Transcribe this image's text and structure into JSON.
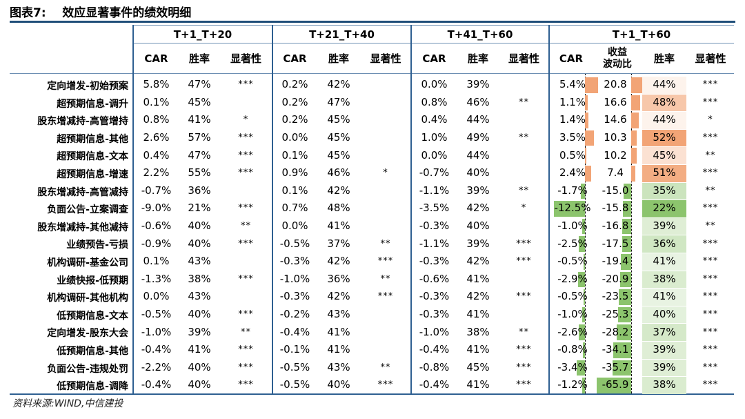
{
  "title": "图表7:    效应显著事件的绩效明细",
  "source": "资料来源:WIND,中信建投",
  "groups": [
    "T+1_T+20",
    "T+21_T+40",
    "T+41_T+60",
    "T+1_T+60"
  ],
  "subheaders": {
    "car": "CAR",
    "win": "胜率",
    "sig": "显著性",
    "ratio_line1": "收益",
    "ratio_line2": "波动比"
  },
  "colors": {
    "orange_strong": "#f2a476",
    "orange_light": "#fbe0cf",
    "green_strong": "#8cc46d",
    "green_light": "#e2f0da",
    "rule": "#2e5f91"
  },
  "rows": [
    {
      "label": "定向增发-初始预案",
      "c1": "5.8%",
      "w1": "47%",
      "s1": "***",
      "c2": "0.2%",
      "w2": "42%",
      "s2": "",
      "c3": "0.0%",
      "w3": "39%",
      "s3": "",
      "c4": "5.4%",
      "r4": "20.8",
      "w4": "44%",
      "s4": "***"
    },
    {
      "label": "超预期信息-调升",
      "c1": "0.1%",
      "w1": "45%",
      "s1": "",
      "c2": "0.2%",
      "w2": "47%",
      "s2": "",
      "c3": "0.8%",
      "w3": "46%",
      "s3": "**",
      "c4": "1.1%",
      "r4": "16.6",
      "w4": "48%",
      "s4": "***"
    },
    {
      "label": "股东增减持-高管增持",
      "c1": "0.8%",
      "w1": "41%",
      "s1": "*",
      "c2": "0.2%",
      "w2": "45%",
      "s2": "",
      "c3": "0.4%",
      "w3": "44%",
      "s3": "",
      "c4": "1.4%",
      "r4": "14.6",
      "w4": "44%",
      "s4": "*"
    },
    {
      "label": "超预期信息-其他",
      "c1": "2.6%",
      "w1": "57%",
      "s1": "***",
      "c2": "0.0%",
      "w2": "45%",
      "s2": "",
      "c3": "1.0%",
      "w3": "49%",
      "s3": "**",
      "c4": "3.5%",
      "r4": "10.3",
      "w4": "52%",
      "s4": "***"
    },
    {
      "label": "超预期信息-文本",
      "c1": "0.4%",
      "w1": "47%",
      "s1": "***",
      "c2": "0.1%",
      "w2": "45%",
      "s2": "",
      "c3": "0.0%",
      "w3": "44%",
      "s3": "",
      "c4": "0.5%",
      "r4": "10.2",
      "w4": "45%",
      "s4": "**"
    },
    {
      "label": "超预期信息-增速",
      "c1": "2.2%",
      "w1": "55%",
      "s1": "***",
      "c2": "0.9%",
      "w2": "46%",
      "s2": "*",
      "c3": "-0.7%",
      "w3": "40%",
      "s3": "",
      "c4": "2.4%",
      "r4": "7.4",
      "w4": "51%",
      "s4": "***"
    },
    {
      "label": "股东增减持-高管减持",
      "c1": "-0.7%",
      "w1": "36%",
      "s1": "",
      "c2": "0.1%",
      "w2": "42%",
      "s2": "",
      "c3": "-1.1%",
      "w3": "39%",
      "s3": "**",
      "c4": "-1.7%",
      "r4": "-15.0",
      "w4": "35%",
      "s4": "**"
    },
    {
      "label": "负面公告-立案调查",
      "c1": "-9.0%",
      "w1": "21%",
      "s1": "***",
      "c2": "0.7%",
      "w2": "48%",
      "s2": "",
      "c3": "-3.5%",
      "w3": "42%",
      "s3": "*",
      "c4": "-12.5%",
      "r4": "-15.8",
      "w4": "22%",
      "s4": "***"
    },
    {
      "label": "股东增减持-其他减持",
      "c1": "-0.6%",
      "w1": "40%",
      "s1": "**",
      "c2": "0.0%",
      "w2": "41%",
      "s2": "",
      "c3": "-0.3%",
      "w3": "40%",
      "s3": "",
      "c4": "-1.0%",
      "r4": "-16.8",
      "w4": "39%",
      "s4": "**"
    },
    {
      "label": "业绩预告-亏损",
      "c1": "-0.9%",
      "w1": "40%",
      "s1": "***",
      "c2": "-0.5%",
      "w2": "37%",
      "s2": "**",
      "c3": "-1.1%",
      "w3": "39%",
      "s3": "***",
      "c4": "-2.5%",
      "r4": "-17.5",
      "w4": "36%",
      "s4": "***"
    },
    {
      "label": "机构调研-基金公司",
      "c1": "0.1%",
      "w1": "43%",
      "s1": "",
      "c2": "-0.3%",
      "w2": "42%",
      "s2": "***",
      "c3": "-0.3%",
      "w3": "42%",
      "s3": "***",
      "c4": "-0.5%",
      "r4": "-19.4",
      "w4": "41%",
      "s4": "***"
    },
    {
      "label": "业绩快报-低预期",
      "c1": "-1.3%",
      "w1": "38%",
      "s1": "***",
      "c2": "-1.0%",
      "w2": "36%",
      "s2": "**",
      "c3": "-0.6%",
      "w3": "41%",
      "s3": "",
      "c4": "-2.9%",
      "r4": "-20.9",
      "w4": "38%",
      "s4": "***"
    },
    {
      "label": "机构调研-其他机构",
      "c1": "0.0%",
      "w1": "43%",
      "s1": "",
      "c2": "-0.3%",
      "w2": "42%",
      "s2": "***",
      "c3": "-0.3%",
      "w3": "42%",
      "s3": "***",
      "c4": "-0.5%",
      "r4": "-23.5",
      "w4": "41%",
      "s4": "***"
    },
    {
      "label": "低预期信息-文本",
      "c1": "-0.5%",
      "w1": "40%",
      "s1": "***",
      "c2": "-0.2%",
      "w2": "43%",
      "s2": "",
      "c3": "-0.3%",
      "w3": "41%",
      "s3": "",
      "c4": "-1.0%",
      "r4": "-25.3",
      "w4": "40%",
      "s4": "***"
    },
    {
      "label": "定向增发-股东大会",
      "c1": "-1.0%",
      "w1": "39%",
      "s1": "**",
      "c2": "-0.4%",
      "w2": "41%",
      "s2": "",
      "c3": "-1.0%",
      "w3": "38%",
      "s3": "**",
      "c4": "-2.6%",
      "r4": "-28.2",
      "w4": "37%",
      "s4": "***"
    },
    {
      "label": "低预期信息-其他",
      "c1": "-0.4%",
      "w1": "41%",
      "s1": "***",
      "c2": "-0.1%",
      "w2": "41%",
      "s2": "",
      "c3": "-0.4%",
      "w3": "41%",
      "s3": "***",
      "c4": "-0.8%",
      "r4": "-34.1",
      "w4": "39%",
      "s4": "***"
    },
    {
      "label": "负面公告-违规处罚",
      "c1": "-2.2%",
      "w1": "40%",
      "s1": "***",
      "c2": "-0.5%",
      "w2": "43%",
      "s2": "**",
      "c3": "-0.8%",
      "w3": "45%",
      "s3": "***",
      "c4": "-3.4%",
      "r4": "-35.7",
      "w4": "39%",
      "s4": "***"
    },
    {
      "label": "低预期信息-调降",
      "c1": "-0.4%",
      "w1": "40%",
      "s1": "***",
      "c2": "-0.5%",
      "w2": "40%",
      "s2": "***",
      "c3": "-0.4%",
      "w3": "41%",
      "s3": "***",
      "c4": "-1.2%",
      "r4": "-65.9",
      "w4": "38%",
      "s4": "***"
    }
  ]
}
